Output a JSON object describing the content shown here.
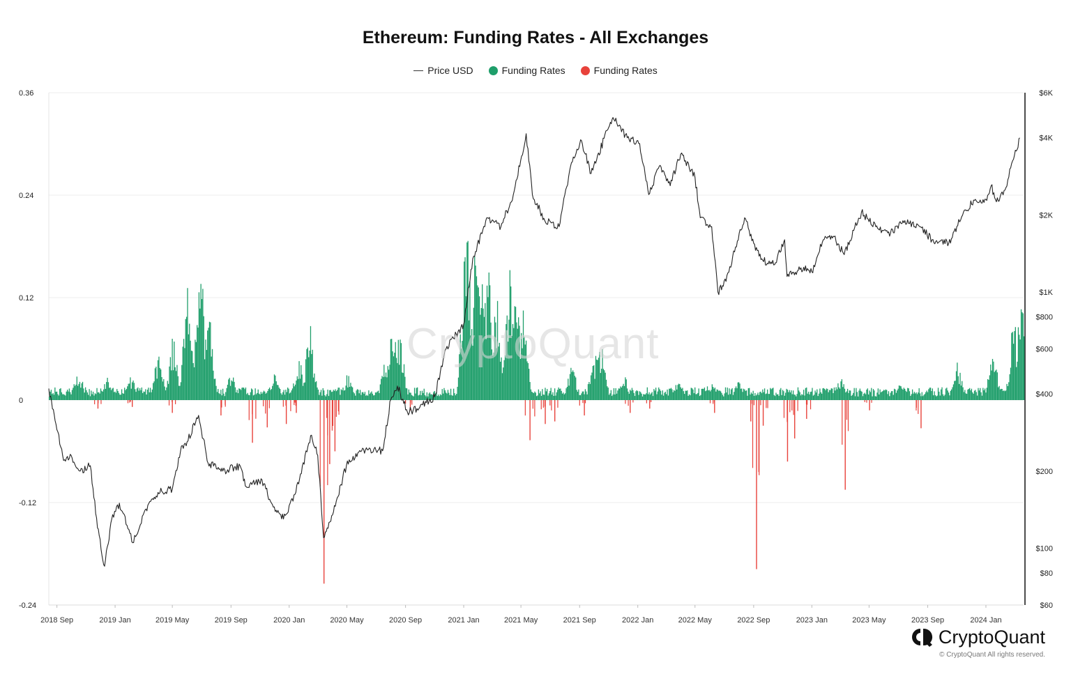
{
  "title": "Ethereum: Funding Rates - All Exchanges",
  "legend": [
    {
      "label": "Price USD",
      "kind": "line",
      "color": "#333333"
    },
    {
      "label": "Funding Rates",
      "kind": "dot",
      "color": "#1e9e6a"
    },
    {
      "label": "Funding Rates",
      "kind": "dot",
      "color": "#e8423b"
    }
  ],
  "watermark": "CryptoQuant",
  "brand": {
    "name": "CryptoQuant",
    "copyright": "© CryptoQuant All rights reserved."
  },
  "chart_data": {
    "type": "bar",
    "left_axis": {
      "label": "Funding Rates",
      "ticks": [
        "0.36",
        "0.24",
        "0.12",
        "0",
        "-0.12",
        "-0.24"
      ],
      "range": [
        -0.24,
        0.36
      ]
    },
    "right_axis": {
      "label": "Price USD",
      "scale": "log",
      "ticks": [
        "$6K",
        "$4K",
        "$2K",
        "$1K",
        "$800",
        "$600",
        "$400",
        "$200",
        "$100",
        "$80",
        "$60"
      ],
      "range": [
        60,
        6000
      ]
    },
    "x_ticks": [
      "2018 Sep",
      "2019 Jan",
      "2019 May",
      "2019 Sep",
      "2020 Jan",
      "2020 May",
      "2020 Sep",
      "2021 Jan",
      "2021 May",
      "2021 Sep",
      "2022 Jan",
      "2022 May",
      "2022 Sep",
      "2023 Jan",
      "2023 May",
      "2023 Sep",
      "2024 Jan"
    ],
    "x_range": [
      "2018-08-15",
      "2024-03-20"
    ],
    "price_series": {
      "name": "Price USD",
      "color": "#222222",
      "points": [
        [
          "2018-08-15",
          420
        ],
        [
          "2018-09-01",
          290
        ],
        [
          "2018-09-15",
          220
        ],
        [
          "2018-10-01",
          230
        ],
        [
          "2018-10-20",
          200
        ],
        [
          "2018-11-10",
          210
        ],
        [
          "2018-11-25",
          120
        ],
        [
          "2018-12-10",
          85
        ],
        [
          "2018-12-25",
          130
        ],
        [
          "2019-01-10",
          150
        ],
        [
          "2019-02-07",
          105
        ],
        [
          "2019-03-01",
          135
        ],
        [
          "2019-04-01",
          165
        ],
        [
          "2019-05-01",
          170
        ],
        [
          "2019-05-20",
          250
        ],
        [
          "2019-06-01",
          260
        ],
        [
          "2019-06-25",
          330
        ],
        [
          "2019-07-15",
          215
        ],
        [
          "2019-08-15",
          200
        ],
        [
          "2019-09-20",
          210
        ],
        [
          "2019-10-01",
          175
        ],
        [
          "2019-11-05",
          185
        ],
        [
          "2019-11-25",
          150
        ],
        [
          "2019-12-20",
          130
        ],
        [
          "2020-01-15",
          165
        ],
        [
          "2020-02-15",
          275
        ],
        [
          "2020-03-01",
          230
        ],
        [
          "2020-03-13",
          110
        ],
        [
          "2020-04-01",
          135
        ],
        [
          "2020-04-30",
          210
        ],
        [
          "2020-06-01",
          240
        ],
        [
          "2020-07-15",
          240
        ],
        [
          "2020-08-01",
          380
        ],
        [
          "2020-08-15",
          430
        ],
        [
          "2020-09-05",
          340
        ],
        [
          "2020-10-01",
          355
        ],
        [
          "2020-11-01",
          390
        ],
        [
          "2020-11-25",
          600
        ],
        [
          "2021-01-01",
          750
        ],
        [
          "2021-01-20",
          1350
        ],
        [
          "2021-02-20",
          1950
        ],
        [
          "2021-03-20",
          1800
        ],
        [
          "2021-04-15",
          2400
        ],
        [
          "2021-05-12",
          4150
        ],
        [
          "2021-05-25",
          2400
        ],
        [
          "2021-06-20",
          1900
        ],
        [
          "2021-07-20",
          1800
        ],
        [
          "2021-08-15",
          3200
        ],
        [
          "2021-09-05",
          3900
        ],
        [
          "2021-09-25",
          2900
        ],
        [
          "2021-10-30",
          4300
        ],
        [
          "2021-11-10",
          4800
        ],
        [
          "2021-12-10",
          4000
        ],
        [
          "2022-01-05",
          3800
        ],
        [
          "2022-01-24",
          2400
        ],
        [
          "2022-02-15",
          3100
        ],
        [
          "2022-03-10",
          2600
        ],
        [
          "2022-04-01",
          3450
        ],
        [
          "2022-05-01",
          2800
        ],
        [
          "2022-05-12",
          1950
        ],
        [
          "2022-06-05",
          1800
        ],
        [
          "2022-06-18",
          1000
        ],
        [
          "2022-07-05",
          1100
        ],
        [
          "2022-07-25",
          1500
        ],
        [
          "2022-08-13",
          1950
        ],
        [
          "2022-09-01",
          1550
        ],
        [
          "2022-09-20",
          1330
        ],
        [
          "2022-10-15",
          1280
        ],
        [
          "2022-11-05",
          1600
        ],
        [
          "2022-11-10",
          1150
        ],
        [
          "2022-12-15",
          1250
        ],
        [
          "2023-01-01",
          1200
        ],
        [
          "2023-01-25",
          1600
        ],
        [
          "2023-02-15",
          1650
        ],
        [
          "2023-03-10",
          1400
        ],
        [
          "2023-04-15",
          2050
        ],
        [
          "2023-05-15",
          1800
        ],
        [
          "2023-06-15",
          1700
        ],
        [
          "2023-07-15",
          1900
        ],
        [
          "2023-08-15",
          1800
        ],
        [
          "2023-09-10",
          1600
        ],
        [
          "2023-10-15",
          1550
        ],
        [
          "2023-11-01",
          1800
        ],
        [
          "2023-11-15",
          2050
        ],
        [
          "2023-12-10",
          2300
        ],
        [
          "2024-01-01",
          2300
        ],
        [
          "2024-01-12",
          2600
        ],
        [
          "2024-01-23",
          2250
        ],
        [
          "2024-02-10",
          2500
        ],
        [
          "2024-02-28",
          3300
        ],
        [
          "2024-03-12",
          4000
        ]
      ]
    },
    "funding_positive": {
      "name": "Funding Rates",
      "color": "#1e9e6a",
      "baseline": 0.012,
      "peaks": [
        [
          "2018-10-15",
          0.035
        ],
        [
          "2018-12-15",
          0.03
        ],
        [
          "2019-02-01",
          0.03
        ],
        [
          "2019-04-01",
          0.055
        ],
        [
          "2019-05-01",
          0.07
        ],
        [
          "2019-06-01",
          0.13
        ],
        [
          "2019-06-28",
          0.152
        ],
        [
          "2019-07-15",
          0.1
        ],
        [
          "2019-09-01",
          0.03
        ],
        [
          "2019-12-01",
          0.03
        ],
        [
          "2020-01-20",
          0.05
        ],
        [
          "2020-02-12",
          0.085
        ],
        [
          "2020-05-01",
          0.03
        ],
        [
          "2020-07-20",
          0.05
        ],
        [
          "2020-08-05",
          0.09
        ],
        [
          "2020-08-20",
          0.075
        ],
        [
          "2021-01-05",
          0.232
        ],
        [
          "2021-01-25",
          0.17
        ],
        [
          "2021-02-10",
          0.18
        ],
        [
          "2021-02-20",
          0.15
        ],
        [
          "2021-03-10",
          0.12
        ],
        [
          "2021-04-05",
          0.15
        ],
        [
          "2021-04-20",
          0.13
        ],
        [
          "2021-05-05",
          0.1
        ],
        [
          "2021-08-15",
          0.04
        ],
        [
          "2021-10-01",
          0.055
        ],
        [
          "2021-10-15",
          0.065
        ],
        [
          "2021-12-01",
          0.03
        ],
        [
          "2022-03-25",
          0.02
        ],
        [
          "2022-06-01",
          0.02
        ],
        [
          "2022-08-01",
          0.022
        ],
        [
          "2023-03-01",
          0.025
        ],
        [
          "2023-07-01",
          0.02
        ],
        [
          "2023-11-01",
          0.045
        ],
        [
          "2024-01-15",
          0.055
        ],
        [
          "2024-02-28",
          0.09
        ],
        [
          "2024-03-14",
          0.118
        ]
      ]
    },
    "funding_negative": {
      "name": "Funding Rates",
      "color": "#e8423b",
      "spikes": [
        [
          "2018-11-25",
          -0.01
        ],
        [
          "2019-02-05",
          -0.008
        ],
        [
          "2019-04-30",
          -0.015
        ],
        [
          "2019-08-10",
          -0.018
        ],
        [
          "2019-10-15",
          -0.05
        ],
        [
          "2019-11-15",
          -0.032
        ],
        [
          "2019-12-25",
          -0.028
        ],
        [
          "2020-01-15",
          -0.015
        ],
        [
          "2020-03-13",
          -0.215
        ],
        [
          "2020-03-25",
          -0.075
        ],
        [
          "2020-04-05",
          -0.06
        ],
        [
          "2020-09-10",
          -0.012
        ],
        [
          "2021-05-19",
          -0.047
        ],
        [
          "2021-06-20",
          -0.028
        ],
        [
          "2021-07-10",
          -0.025
        ],
        [
          "2021-09-10",
          -0.018
        ],
        [
          "2021-12-15",
          -0.015
        ],
        [
          "2022-01-25",
          -0.01
        ],
        [
          "2022-06-10",
          -0.015
        ],
        [
          "2022-08-25",
          -0.025
        ],
        [
          "2022-09-06",
          -0.198
        ],
        [
          "2022-09-20",
          -0.03
        ],
        [
          "2022-11-10",
          -0.072
        ],
        [
          "2022-11-25",
          -0.045
        ],
        [
          "2022-12-20",
          -0.022
        ],
        [
          "2023-03-11",
          -0.105
        ],
        [
          "2023-05-01",
          -0.012
        ],
        [
          "2023-08-17",
          -0.033
        ]
      ]
    }
  }
}
